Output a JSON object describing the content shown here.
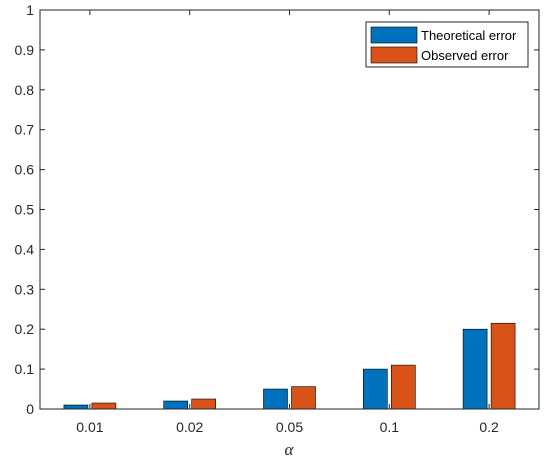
{
  "chart_data": {
    "type": "bar",
    "categories": [
      "0.01",
      "0.02",
      "0.05",
      "0.1",
      "0.2"
    ],
    "series": [
      {
        "name": "Theoretical error",
        "values": [
          0.01,
          0.02,
          0.05,
          0.1,
          0.2
        ],
        "color": "#0072BD"
      },
      {
        "name": "Observed error",
        "values": [
          0.015,
          0.025,
          0.056,
          0.11,
          0.215
        ],
        "color": "#D95319"
      }
    ],
    "title": "",
    "xlabel": "α",
    "ylabel": "",
    "ylim": [
      0,
      1
    ],
    "yticks": [
      "0",
      "0.1",
      "0.2",
      "0.3",
      "0.4",
      "0.5",
      "0.6",
      "0.7",
      "0.8",
      "0.9",
      "1"
    ],
    "grid": false,
    "legend_position": "top-right"
  }
}
